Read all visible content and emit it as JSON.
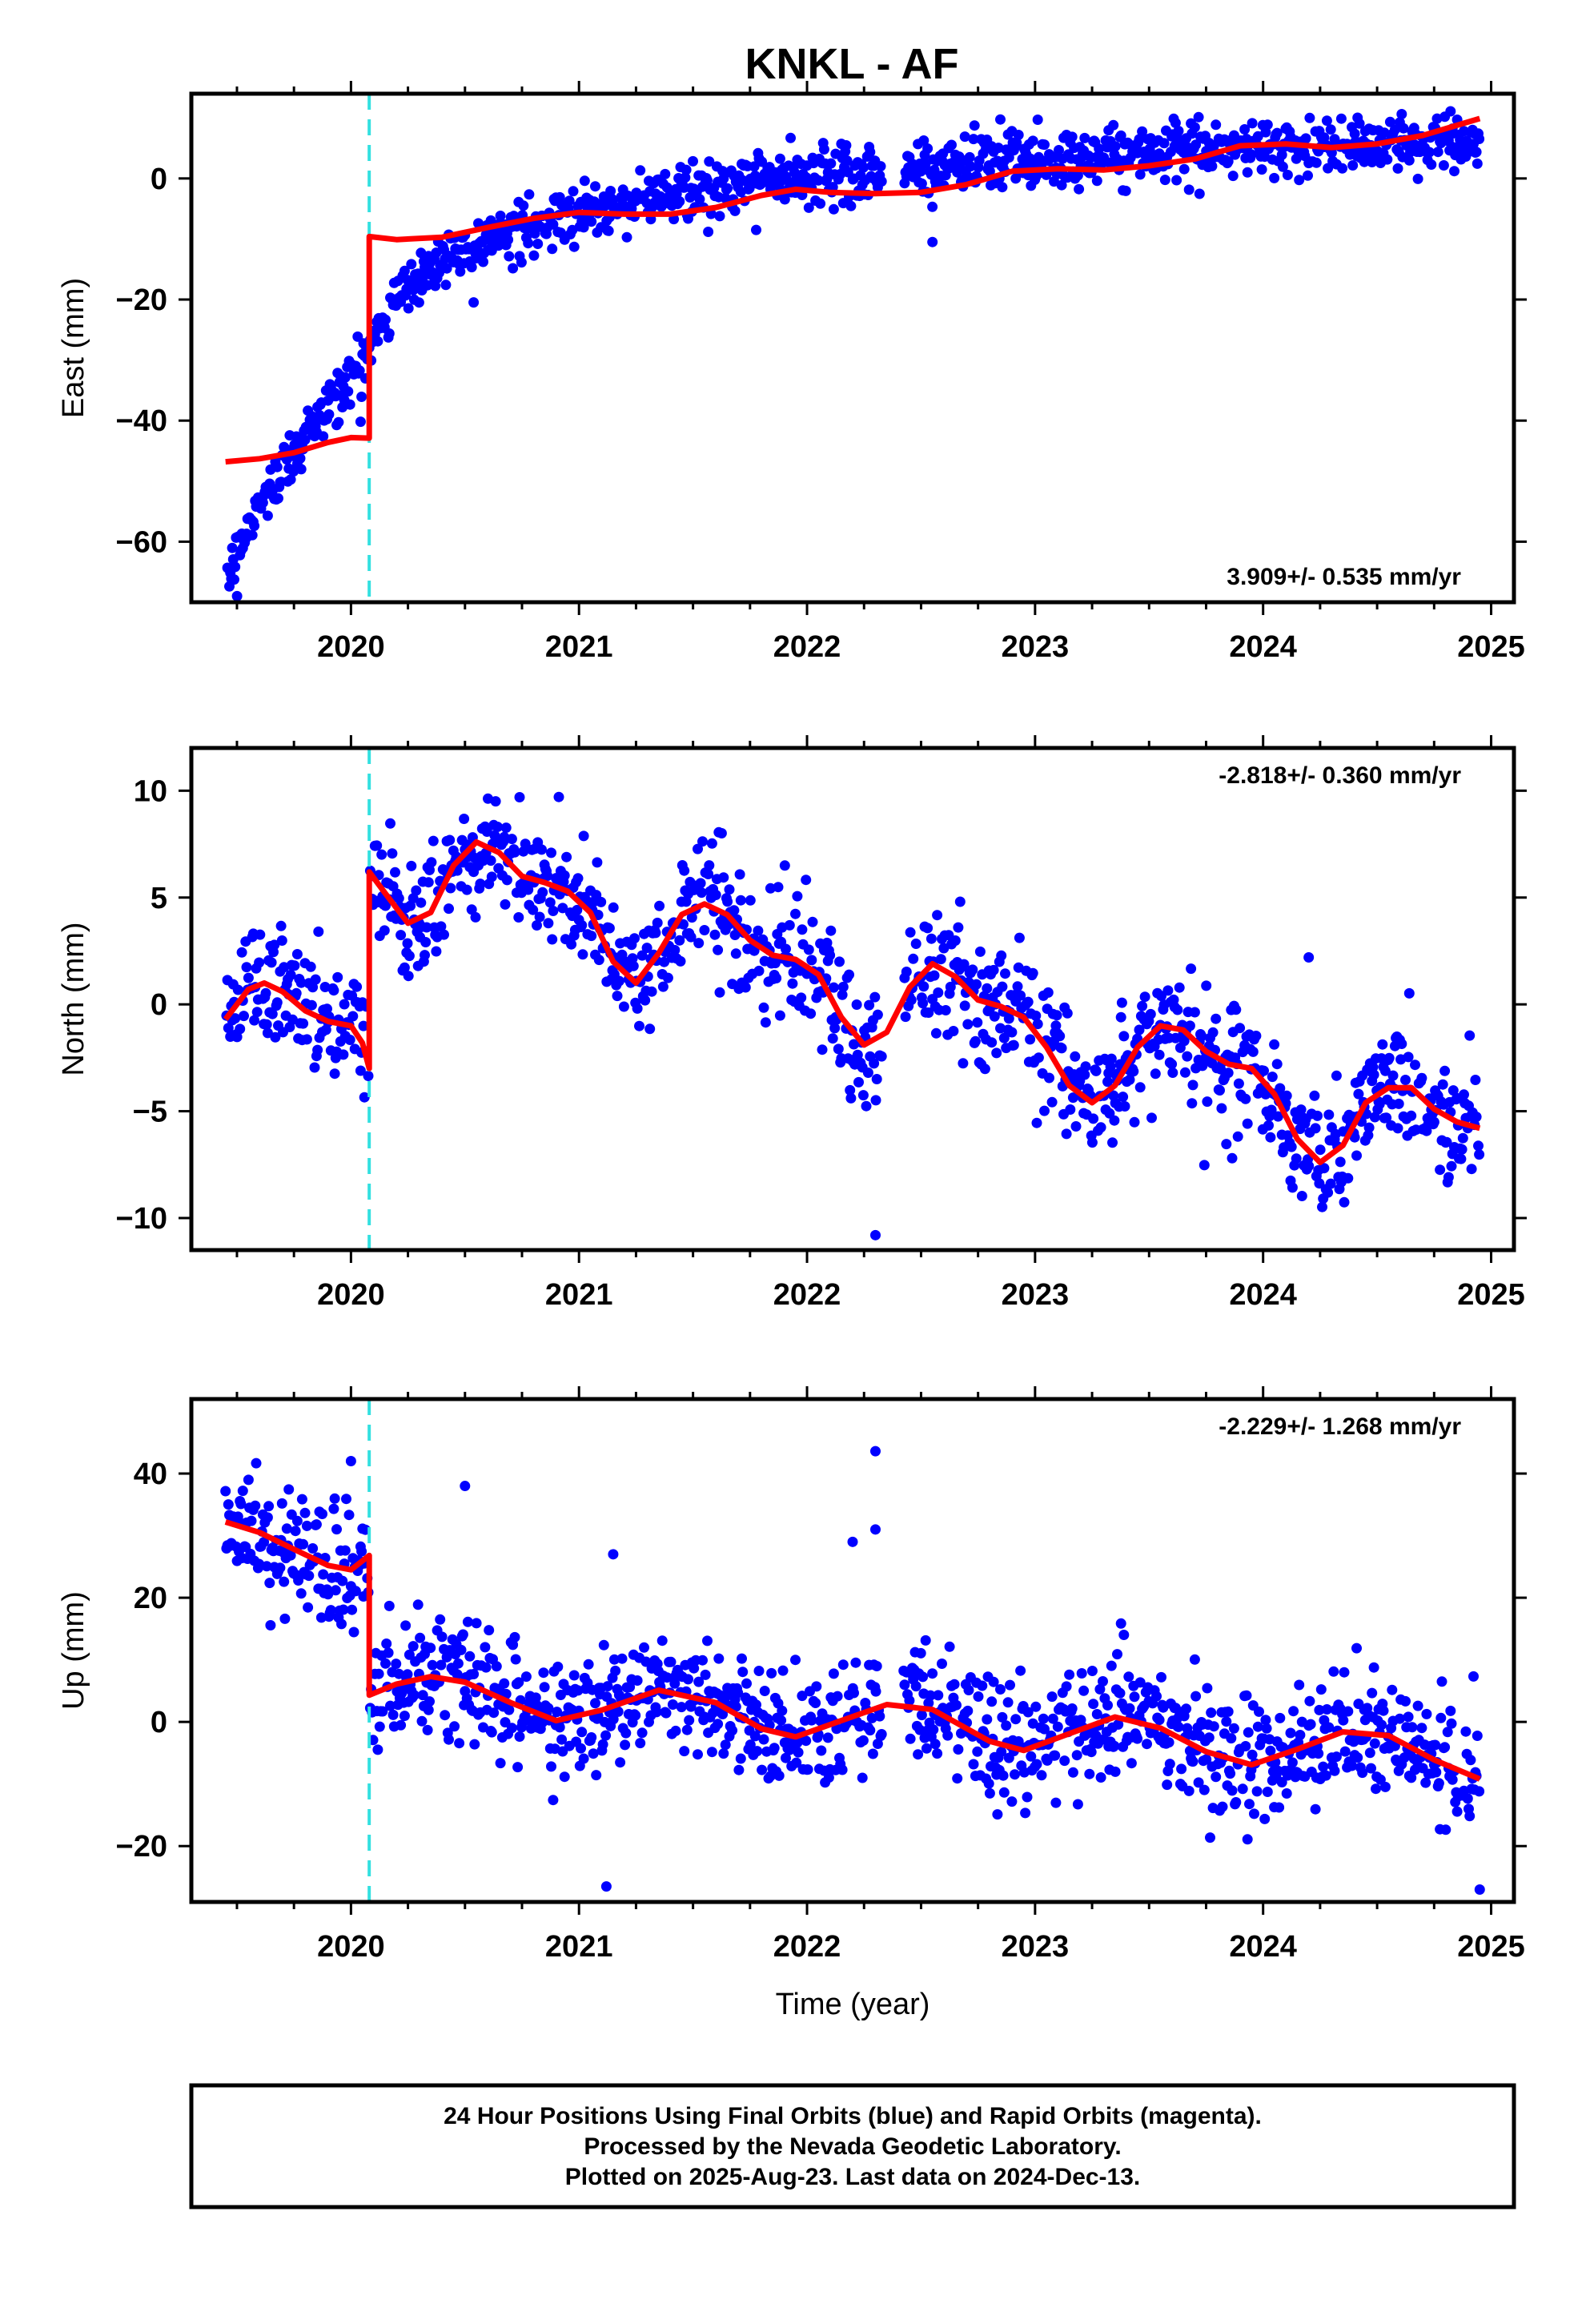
{
  "title": "KNKL - AF",
  "colors": {
    "points": "#0000ff",
    "model": "#ff0000",
    "offset": "#33e0e0",
    "frame": "#000000"
  },
  "chart_data": [
    {
      "type": "scatter",
      "component": "East",
      "ylabel": "East (mm)",
      "xlabel": "",
      "xlim": [
        2019.3,
        2025.1
      ],
      "ylim": [
        -70,
        14
      ],
      "yticks": [
        -60,
        -40,
        -20,
        0
      ],
      "xticks": [
        2020,
        2021,
        2022,
        2023,
        2024,
        2025
      ],
      "offset_epoch": 2020.08,
      "rate_text": "3.909+/- 0.535 mm/yr",
      "rate_position": "bottom-right",
      "trend_anchors": [
        [
          2019.45,
          -67
        ],
        [
          2019.55,
          -57
        ],
        [
          2019.7,
          -48
        ],
        [
          2019.85,
          -40
        ],
        [
          2020.0,
          -33
        ],
        [
          2020.08,
          -29
        ],
        [
          2020.1,
          -25
        ],
        [
          2020.2,
          -20
        ],
        [
          2020.3,
          -16
        ],
        [
          2020.45,
          -12
        ],
        [
          2020.6,
          -10
        ],
        [
          2020.8,
          -8
        ],
        [
          2021.0,
          -6
        ],
        [
          2021.2,
          -4
        ],
        [
          2021.4,
          -2.5
        ],
        [
          2021.6,
          -1.5
        ],
        [
          2021.8,
          0
        ],
        [
          2022.0,
          0.5
        ],
        [
          2022.3,
          1
        ],
        [
          2022.6,
          2
        ],
        [
          2022.9,
          3
        ],
        [
          2023.2,
          3.5
        ],
        [
          2023.5,
          4
        ],
        [
          2023.8,
          4.5
        ],
        [
          2024.1,
          5
        ],
        [
          2024.4,
          5.5
        ],
        [
          2024.7,
          6
        ],
        [
          2024.95,
          6
        ]
      ],
      "model_curve": [
        [
          2019.45,
          -46.8
        ],
        [
          2019.6,
          -46.3
        ],
        [
          2019.75,
          -45.3
        ],
        [
          2019.9,
          -43.6
        ],
        [
          2020.0,
          -42.8
        ],
        [
          2020.08,
          -42.9
        ],
        [
          2020.0801,
          -9.6
        ],
        [
          2020.2,
          -10.1
        ],
        [
          2020.4,
          -9.7
        ],
        [
          2020.6,
          -8.1
        ],
        [
          2020.8,
          -6.6
        ],
        [
          2021.0,
          -5.6
        ],
        [
          2021.2,
          -5.9
        ],
        [
          2021.4,
          -5.9
        ],
        [
          2021.6,
          -4.8
        ],
        [
          2021.8,
          -2.8
        ],
        [
          2021.95,
          -1.8
        ],
        [
          2022.1,
          -2.3
        ],
        [
          2022.3,
          -2.5
        ],
        [
          2022.5,
          -2.3
        ],
        [
          2022.7,
          -1.0
        ],
        [
          2022.9,
          1.2
        ],
        [
          2023.1,
          1.6
        ],
        [
          2023.3,
          1.4
        ],
        [
          2023.5,
          2.1
        ],
        [
          2023.7,
          3.2
        ],
        [
          2023.9,
          5.4
        ],
        [
          2024.1,
          5.7
        ],
        [
          2024.3,
          5.1
        ],
        [
          2024.5,
          5.7
        ],
        [
          2024.7,
          7.1
        ],
        [
          2024.95,
          9.9
        ]
      ],
      "scatter_sd": 2.3,
      "outliers": [
        [
          2022.55,
          -10.5
        ]
      ]
    },
    {
      "type": "scatter",
      "component": "North",
      "ylabel": "North (mm)",
      "xlabel": "",
      "xlim": [
        2019.3,
        2025.1
      ],
      "ylim": [
        -11.5,
        12
      ],
      "yticks": [
        -10,
        -5,
        0,
        5,
        10
      ],
      "xticks": [
        2020,
        2021,
        2022,
        2023,
        2024,
        2025
      ],
      "offset_epoch": 2020.08,
      "rate_text": "-2.818+/- 0.360 mm/yr",
      "rate_position": "top-right",
      "model_curve": [
        [
          2019.45,
          -0.7
        ],
        [
          2019.55,
          0.7
        ],
        [
          2019.62,
          1.0
        ],
        [
          2019.7,
          0.6
        ],
        [
          2019.8,
          -0.3
        ],
        [
          2019.9,
          -0.8
        ],
        [
          2020.0,
          -1.0
        ],
        [
          2020.05,
          -1.8
        ],
        [
          2020.08,
          -3.0
        ],
        [
          2020.0801,
          6.2
        ],
        [
          2020.15,
          5.2
        ],
        [
          2020.25,
          3.8
        ],
        [
          2020.35,
          4.3
        ],
        [
          2020.45,
          6.5
        ],
        [
          2020.55,
          7.6
        ],
        [
          2020.65,
          7.1
        ],
        [
          2020.75,
          6.0
        ],
        [
          2020.85,
          5.7
        ],
        [
          2020.95,
          5.3
        ],
        [
          2021.05,
          4.3
        ],
        [
          2021.15,
          2.0
        ],
        [
          2021.25,
          1.0
        ],
        [
          2021.35,
          2.4
        ],
        [
          2021.45,
          4.2
        ],
        [
          2021.55,
          4.7
        ],
        [
          2021.65,
          4.2
        ],
        [
          2021.75,
          3.0
        ],
        [
          2021.85,
          2.3
        ],
        [
          2021.95,
          2.1
        ],
        [
          2022.05,
          1.4
        ],
        [
          2022.15,
          -0.6
        ],
        [
          2022.25,
          -1.9
        ],
        [
          2022.35,
          -1.3
        ],
        [
          2022.45,
          0.8
        ],
        [
          2022.55,
          1.9
        ],
        [
          2022.65,
          1.3
        ],
        [
          2022.75,
          0.2
        ],
        [
          2022.85,
          -0.1
        ],
        [
          2022.95,
          -0.6
        ],
        [
          2023.05,
          -2.0
        ],
        [
          2023.15,
          -3.8
        ],
        [
          2023.25,
          -4.6
        ],
        [
          2023.35,
          -3.8
        ],
        [
          2023.45,
          -2.0
        ],
        [
          2023.55,
          -1.0
        ],
        [
          2023.65,
          -1.2
        ],
        [
          2023.75,
          -2.2
        ],
        [
          2023.85,
          -2.8
        ],
        [
          2023.95,
          -3.0
        ],
        [
          2024.05,
          -4.2
        ],
        [
          2024.15,
          -6.3
        ],
        [
          2024.25,
          -7.4
        ],
        [
          2024.35,
          -6.6
        ],
        [
          2024.45,
          -4.6
        ],
        [
          2024.55,
          -3.9
        ],
        [
          2024.65,
          -3.9
        ],
        [
          2024.75,
          -4.9
        ],
        [
          2024.85,
          -5.5
        ],
        [
          2024.95,
          -5.8
        ]
      ],
      "scatter_sd": 1.4,
      "outliers": [
        [
          2022.3,
          -10.8
        ],
        [
          2024.2,
          2.2
        ]
      ]
    },
    {
      "type": "scatter",
      "component": "Up",
      "ylabel": "Up (mm)",
      "xlabel": "Time (year)",
      "xlim": [
        2019.3,
        2025.1
      ],
      "ylim": [
        -29,
        52
      ],
      "yticks": [
        -20,
        0,
        20,
        40
      ],
      "xticks": [
        2020,
        2021,
        2022,
        2023,
        2024,
        2025
      ],
      "offset_epoch": 2020.08,
      "rate_text": "-2.229+/- 1.268 mm/yr",
      "rate_position": "top-right",
      "model_curve": [
        [
          2019.45,
          32.2
        ],
        [
          2019.6,
          30.5
        ],
        [
          2019.75,
          27.8
        ],
        [
          2019.9,
          25.2
        ],
        [
          2020.0,
          24.5
        ],
        [
          2020.08,
          26.8
        ],
        [
          2020.0801,
          4.3
        ],
        [
          2020.2,
          6.1
        ],
        [
          2020.35,
          7.3
        ],
        [
          2020.5,
          6.4
        ],
        [
          2020.7,
          3.1
        ],
        [
          2020.9,
          0.2
        ],
        [
          2021.1,
          1.9
        ],
        [
          2021.35,
          5.1
        ],
        [
          2021.6,
          3.1
        ],
        [
          2021.8,
          -1.1
        ],
        [
          2021.95,
          -2.4
        ],
        [
          2022.15,
          0.2
        ],
        [
          2022.35,
          2.8
        ],
        [
          2022.55,
          2.0
        ],
        [
          2022.8,
          -3.1
        ],
        [
          2022.95,
          -4.6
        ],
        [
          2023.15,
          -1.9
        ],
        [
          2023.35,
          0.8
        ],
        [
          2023.55,
          -1.0
        ],
        [
          2023.75,
          -4.8
        ],
        [
          2023.95,
          -6.9
        ],
        [
          2024.15,
          -4.4
        ],
        [
          2024.35,
          -1.6
        ],
        [
          2024.55,
          -2.2
        ],
        [
          2024.75,
          -6.1
        ],
        [
          2024.95,
          -9.2
        ]
      ],
      "scatter_sd": 5.0,
      "outliers": [
        [
          2022.3,
          43.6
        ],
        [
          2022.3,
          31
        ],
        [
          2022.2,
          29
        ],
        [
          2020.5,
          38
        ],
        [
          2020.0,
          42
        ],
        [
          2021.15,
          27
        ],
        [
          2021.12,
          -26.5
        ],
        [
          2024.95,
          -27
        ]
      ]
    }
  ],
  "footer": {
    "line1": "24 Hour Positions Using Final Orbits (blue) and Rapid Orbits (magenta).",
    "line2": "Processed by the Nevada Geodetic Laboratory.",
    "line3": "Plotted on 2025-Aug-23. Last data on 2024-Dec-13."
  }
}
